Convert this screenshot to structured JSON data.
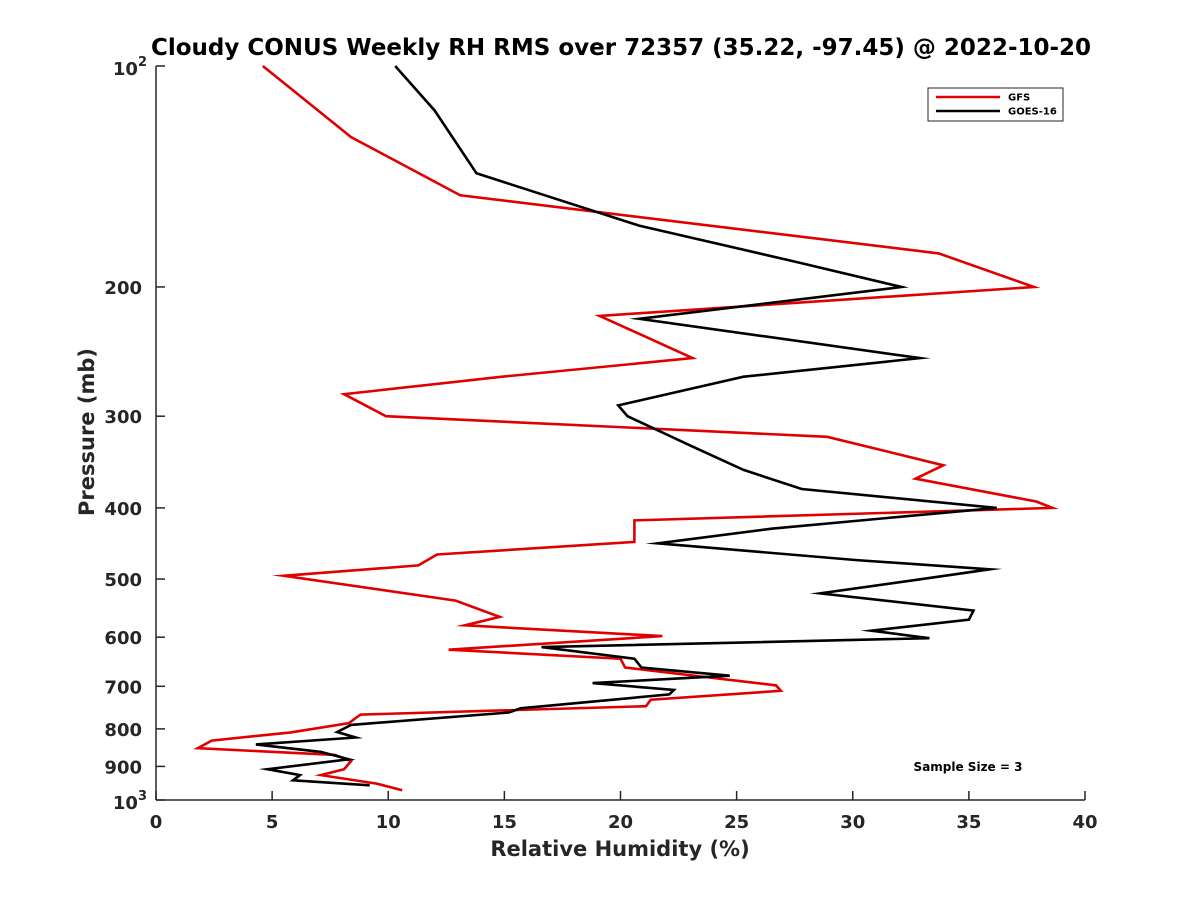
{
  "chart_data": {
    "type": "line",
    "title": "Cloudy CONUS Weekly RH RMS over 72357 (35.22, -97.45) @ 2022-10-20",
    "xlabel": "Relative Humidity (%)",
    "ylabel": "Pressure (mb)",
    "xlim": [
      0,
      40
    ],
    "ylim": [
      100,
      1000
    ],
    "yscale": "log",
    "yreversed": true,
    "grid": false,
    "legend_position": "top-right",
    "annotation": "Sample Size = 3",
    "xticks": [
      0,
      5,
      10,
      15,
      20,
      25,
      30,
      35,
      40
    ],
    "xtick_labels": [
      "0",
      "5",
      "10",
      "15",
      "20",
      "25",
      "30",
      "35",
      "40"
    ],
    "yticks": [
      100,
      200,
      300,
      400,
      500,
      600,
      700,
      800,
      900,
      1000
    ],
    "ytick_labels": [
      {
        "base": "10",
        "sup": "2"
      },
      {
        "base": "200",
        "sup": ""
      },
      {
        "base": "300",
        "sup": ""
      },
      {
        "base": "400",
        "sup": ""
      },
      {
        "base": "500",
        "sup": ""
      },
      {
        "base": "600",
        "sup": ""
      },
      {
        "base": "700",
        "sup": ""
      },
      {
        "base": "800",
        "sup": ""
      },
      {
        "base": "900",
        "sup": ""
      },
      {
        "base": "10",
        "sup": "3"
      }
    ],
    "series": [
      {
        "name": "GFS",
        "color": "#e00000",
        "points": [
          [
            4.6,
            100
          ],
          [
            8.4,
            125
          ],
          [
            13.1,
            150
          ],
          [
            33.7,
            180
          ],
          [
            37.8,
            200
          ],
          [
            19.1,
            219
          ],
          [
            23.1,
            250
          ],
          [
            14.9,
            265
          ],
          [
            8.1,
            280
          ],
          [
            9.9,
            300
          ],
          [
            28.9,
            320
          ],
          [
            33.9,
            350
          ],
          [
            32.7,
            365
          ],
          [
            37.9,
            392
          ],
          [
            38.6,
            400
          ],
          [
            20.6,
            416
          ],
          [
            20.6,
            445
          ],
          [
            12.1,
            463
          ],
          [
            11.3,
            479
          ],
          [
            5.5,
            495
          ],
          [
            12.9,
            535
          ],
          [
            14.8,
            563
          ],
          [
            13.3,
            578
          ],
          [
            21.8,
            598
          ],
          [
            12.6,
            624
          ],
          [
            20.0,
            642
          ],
          [
            20.2,
            660
          ],
          [
            26.7,
            698
          ],
          [
            26.9,
            710
          ],
          [
            21.3,
            730
          ],
          [
            21.1,
            745
          ],
          [
            8.8,
            765
          ],
          [
            8.3,
            786
          ],
          [
            5.8,
            809
          ],
          [
            2.4,
            830
          ],
          [
            1.8,
            850
          ],
          [
            7.7,
            868
          ],
          [
            8.4,
            885
          ],
          [
            8.1,
            908
          ],
          [
            7.1,
            925
          ],
          [
            9.5,
            950
          ],
          [
            10.6,
            970
          ]
        ]
      },
      {
        "name": "GOES-16",
        "color": "#000000",
        "points": [
          [
            10.3,
            100
          ],
          [
            12.0,
            115
          ],
          [
            13.8,
            140
          ],
          [
            20.8,
            165
          ],
          [
            27.6,
            185
          ],
          [
            32.1,
            200
          ],
          [
            20.8,
            221
          ],
          [
            32.9,
            250
          ],
          [
            25.3,
            265
          ],
          [
            19.9,
            290
          ],
          [
            20.3,
            300
          ],
          [
            23.1,
            330
          ],
          [
            25.3,
            355
          ],
          [
            27.8,
            377
          ],
          [
            36.2,
            400
          ],
          [
            26.5,
            427
          ],
          [
            21.6,
            447
          ],
          [
            30.1,
            471
          ],
          [
            35.9,
            485
          ],
          [
            32.6,
            502
          ],
          [
            28.6,
            523
          ],
          [
            35.2,
            552
          ],
          [
            35.0,
            568
          ],
          [
            30.8,
            588
          ],
          [
            33.3,
            602
          ],
          [
            16.6,
            619
          ],
          [
            20.6,
            642
          ],
          [
            20.9,
            660
          ],
          [
            24.7,
            677
          ],
          [
            18.8,
            693
          ],
          [
            22.3,
            708
          ],
          [
            22.1,
            718
          ],
          [
            15.7,
            750
          ],
          [
            15.2,
            760
          ],
          [
            8.4,
            790
          ],
          [
            7.8,
            808
          ],
          [
            8.6,
            822
          ],
          [
            4.3,
            840
          ],
          [
            7.1,
            860
          ],
          [
            8.3,
            880
          ],
          [
            4.8,
            908
          ],
          [
            6.2,
            925
          ],
          [
            5.9,
            940
          ],
          [
            9.2,
            955
          ]
        ]
      }
    ]
  }
}
